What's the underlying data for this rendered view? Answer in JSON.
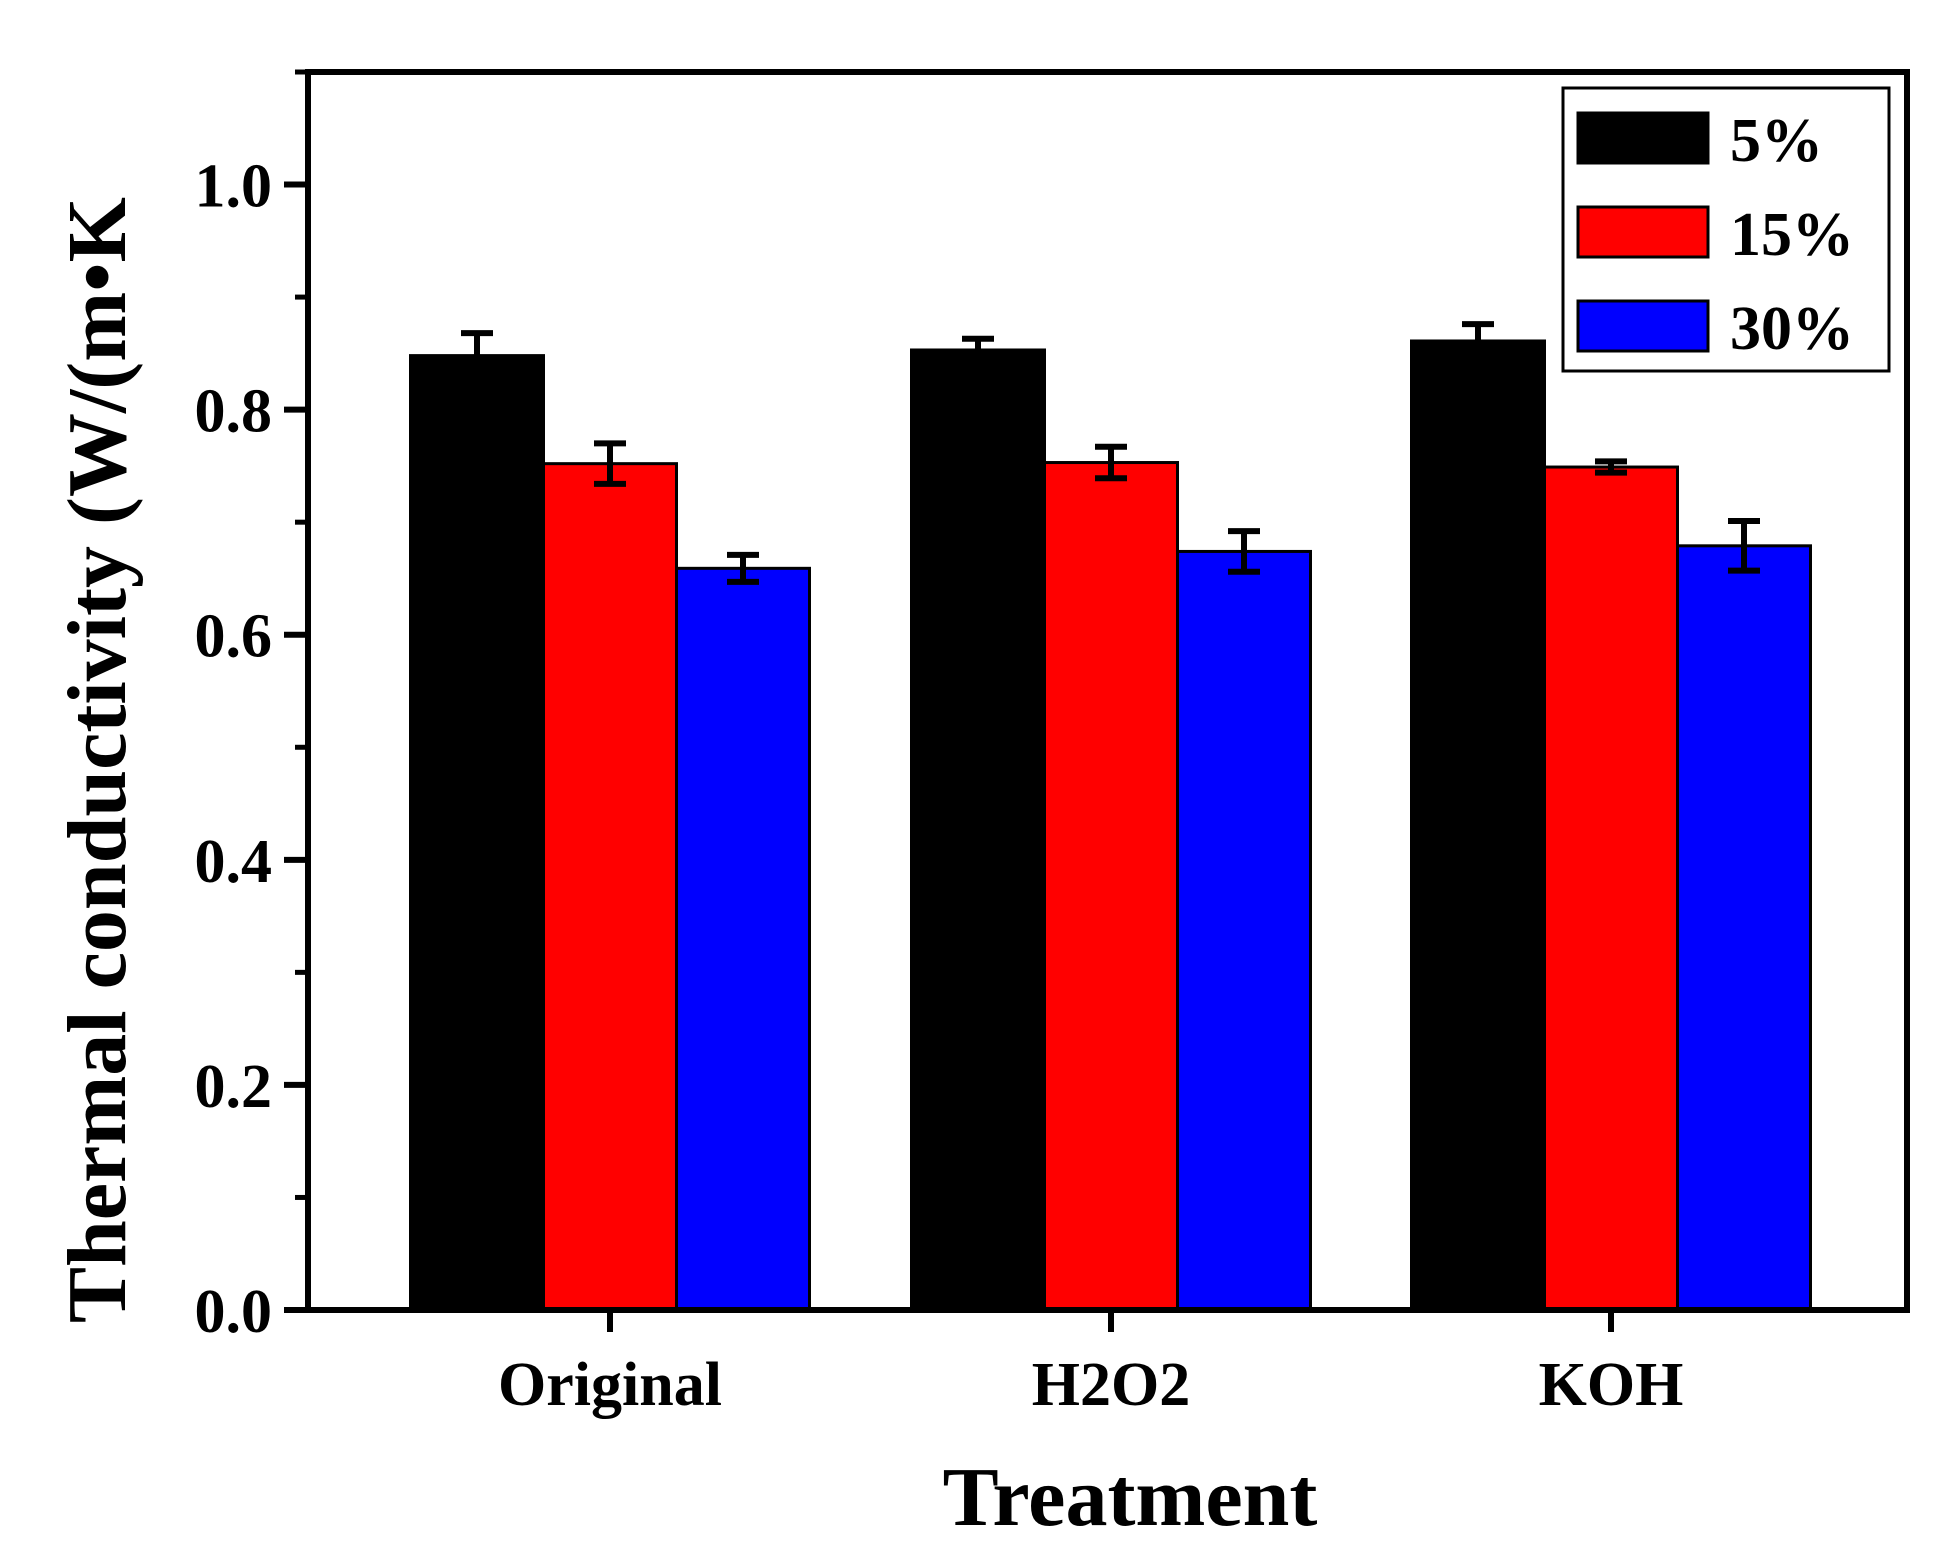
{
  "chart_data": {
    "type": "bar",
    "title": "",
    "xlabel": "Treatment",
    "ylabel": "Thermal conductivity (W/(m•K",
    "categories": [
      "Original",
      "H2O2",
      "KOH"
    ],
    "series": [
      {
        "name": "5%",
        "color": "#000000",
        "values": [
          0.848,
          0.853,
          0.861
        ],
        "errors": [
          0.02,
          0.01,
          0.015
        ]
      },
      {
        "name": "15%",
        "color": "#ff0000",
        "values": [
          0.752,
          0.753,
          0.749
        ],
        "errors": [
          0.018,
          0.014,
          0.005
        ]
      },
      {
        "name": "30%",
        "color": "#0000ff",
        "values": [
          0.659,
          0.674,
          0.679
        ],
        "errors": [
          0.012,
          0.018,
          0.022
        ]
      }
    ],
    "ylim": [
      0,
      1.1
    ],
    "yticks": [
      "0.0",
      "0.2",
      "0.4",
      "0.6",
      "0.8",
      "1.0"
    ],
    "legend": "top-right",
    "grid": false
  }
}
